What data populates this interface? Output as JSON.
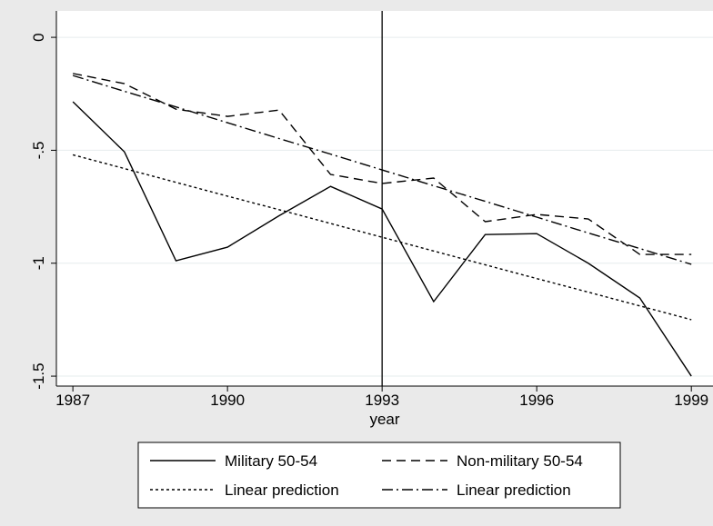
{
  "chart_data": {
    "type": "line",
    "x_label": "year",
    "x": [
      1987,
      1988,
      1989,
      1990,
      1991,
      1992,
      1993,
      1994,
      1995,
      1996,
      1997,
      1998,
      1999
    ],
    "series": [
      {
        "name": "Military 50-54",
        "color": "#000000",
        "dash": "solid",
        "values": [
          -0.285,
          -0.507,
          -0.989,
          -0.929,
          -0.79,
          -0.66,
          -0.76,
          -1.17,
          -0.873,
          -0.869,
          -1.0,
          -1.154,
          -1.5
        ]
      },
      {
        "name": "Non-military 50-54",
        "color": "#000000",
        "dash": "dash",
        "values": [
          -0.16,
          -0.205,
          -0.318,
          -0.35,
          -0.322,
          -0.607,
          -0.647,
          -0.623,
          -0.816,
          -0.784,
          -0.804,
          -0.961,
          -0.961
        ]
      },
      {
        "name": "Linear prediction",
        "color": "#000000",
        "dash": "dot",
        "values": [
          -0.52,
          -0.581,
          -0.642,
          -0.703,
          -0.763,
          -0.824,
          -0.885,
          -0.946,
          -1.007,
          -1.068,
          -1.128,
          -1.189,
          -1.25
        ]
      },
      {
        "name": "Linear prediction",
        "color": "#000000",
        "dash": "dashdot",
        "values": [
          -0.169,
          -0.239,
          -0.308,
          -0.378,
          -0.448,
          -0.517,
          -0.587,
          -0.657,
          -0.726,
          -0.796,
          -0.866,
          -0.935,
          -1.005
        ]
      }
    ],
    "xline": 1993,
    "xlim": [
      1986.68,
      1999.42
    ],
    "ylim": [
      -1.544,
      0.117
    ],
    "xticks": [
      1987,
      1990,
      1993,
      1996,
      1999
    ],
    "yticks": [
      0,
      {
        "value": -0.5,
        "label": "-.5"
      },
      -1,
      -1.5
    ],
    "grid": true,
    "legend": "bottom"
  }
}
